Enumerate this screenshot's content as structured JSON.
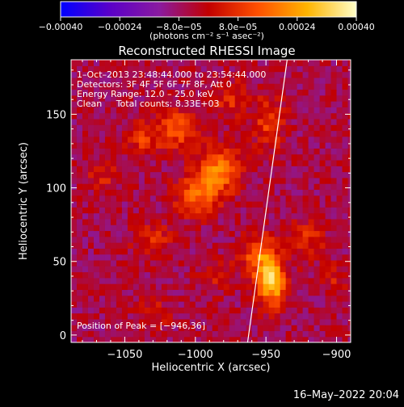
{
  "chart_data": {
    "type": "heatmap",
    "title": "Reconstructed RHESSI Image",
    "xlabel": "Heliocentric X (arcsec)",
    "ylabel": "Heliocentric Y (arcsec)",
    "xlim": [
      -1088,
      -890
    ],
    "ylim": [
      -5,
      187
    ],
    "xticks": [
      {
        "value": -1050,
        "label": "−1050"
      },
      {
        "value": -1000,
        "label": "−1000"
      },
      {
        "value": -950,
        "label": "−950"
      },
      {
        "value": -900,
        "label": "−900"
      }
    ],
    "yticks": [
      {
        "value": 0,
        "label": "0"
      },
      {
        "value": 50,
        "label": "50"
      },
      {
        "value": 100,
        "label": "100"
      },
      {
        "value": 150,
        "label": "150"
      }
    ],
    "colorbar": {
      "range": [
        -0.0004,
        0.0004
      ],
      "tick_values": [
        -0.0004,
        -0.00024,
        -8e-05,
        8e-05,
        0.00024,
        0.0004
      ],
      "tick_labels": [
        "−0.00040",
        "−0.00024",
        "−8.0e−05",
        "8.0e−05",
        "0.00024",
        "0.00040"
      ],
      "unit_label": "(photons cm⁻² s⁻¹ asec⁻²)",
      "colors": [
        "#0000ff",
        "#5a00c8",
        "#8a1aa0",
        "#c20000",
        "#ff5000",
        "#ffb400",
        "#ffffc8"
      ]
    },
    "annotations": [
      "1–Oct–2013 23:48:44.000 to 23:54:44.000",
      "Detectors: 3F 4F 5F 6F 7F 8F, Att 0",
      "Energy Range: 12.0 – 25.0 keV",
      "Clean     Total counts: 8.33E+03"
    ],
    "peak_label": "Position of Peak = [−946,36]",
    "peak": {
      "x": -946,
      "y": 36
    },
    "limb_line": [
      {
        "x": -963,
        "y": -5
      },
      {
        "x": -935,
        "y": 187
      }
    ],
    "sources": [
      {
        "x": -946,
        "y": 36,
        "sx": 7,
        "sy": 11,
        "amp": 0.00036
      },
      {
        "x": -955,
        "y": 55,
        "sx": 8,
        "sy": 10,
        "amp": 0.00022
      },
      {
        "x": -983,
        "y": 112,
        "sx": 11,
        "sy": 11,
        "amp": 0.00024
      },
      {
        "x": -1000,
        "y": 95,
        "sx": 10,
        "sy": 9,
        "amp": 0.00022
      },
      {
        "x": -1012,
        "y": 140,
        "sx": 9,
        "sy": 10,
        "amp": 0.00018
      },
      {
        "x": -1037,
        "y": 135,
        "sx": 9,
        "sy": 9,
        "amp": 0.00014
      },
      {
        "x": -1030,
        "y": 65,
        "sx": 10,
        "sy": 8,
        "amp": 0.00013
      },
      {
        "x": -948,
        "y": 145,
        "sx": 8,
        "sy": 13,
        "amp": 0.00015
      },
      {
        "x": -920,
        "y": 65,
        "sx": 8,
        "sy": 10,
        "amp": 0.00012
      },
      {
        "x": -975,
        "y": 160,
        "sx": 8,
        "sy": 9,
        "amp": 0.00012
      },
      {
        "x": -1065,
        "y": 110,
        "sx": 8,
        "sy": 8,
        "amp": 0.0001
      },
      {
        "x": -1030,
        "y": 15,
        "sx": 8,
        "sy": 7,
        "amp": 0.0001
      },
      {
        "x": -985,
        "y": 40,
        "sx": 9,
        "sy": 8,
        "amp": 9e-05
      },
      {
        "x": -900,
        "y": 40,
        "sx": 6,
        "sy": 7,
        "amp": 9e-05
      }
    ],
    "background": -6e-05
  },
  "timestamp": "16–May–2022 20:04"
}
